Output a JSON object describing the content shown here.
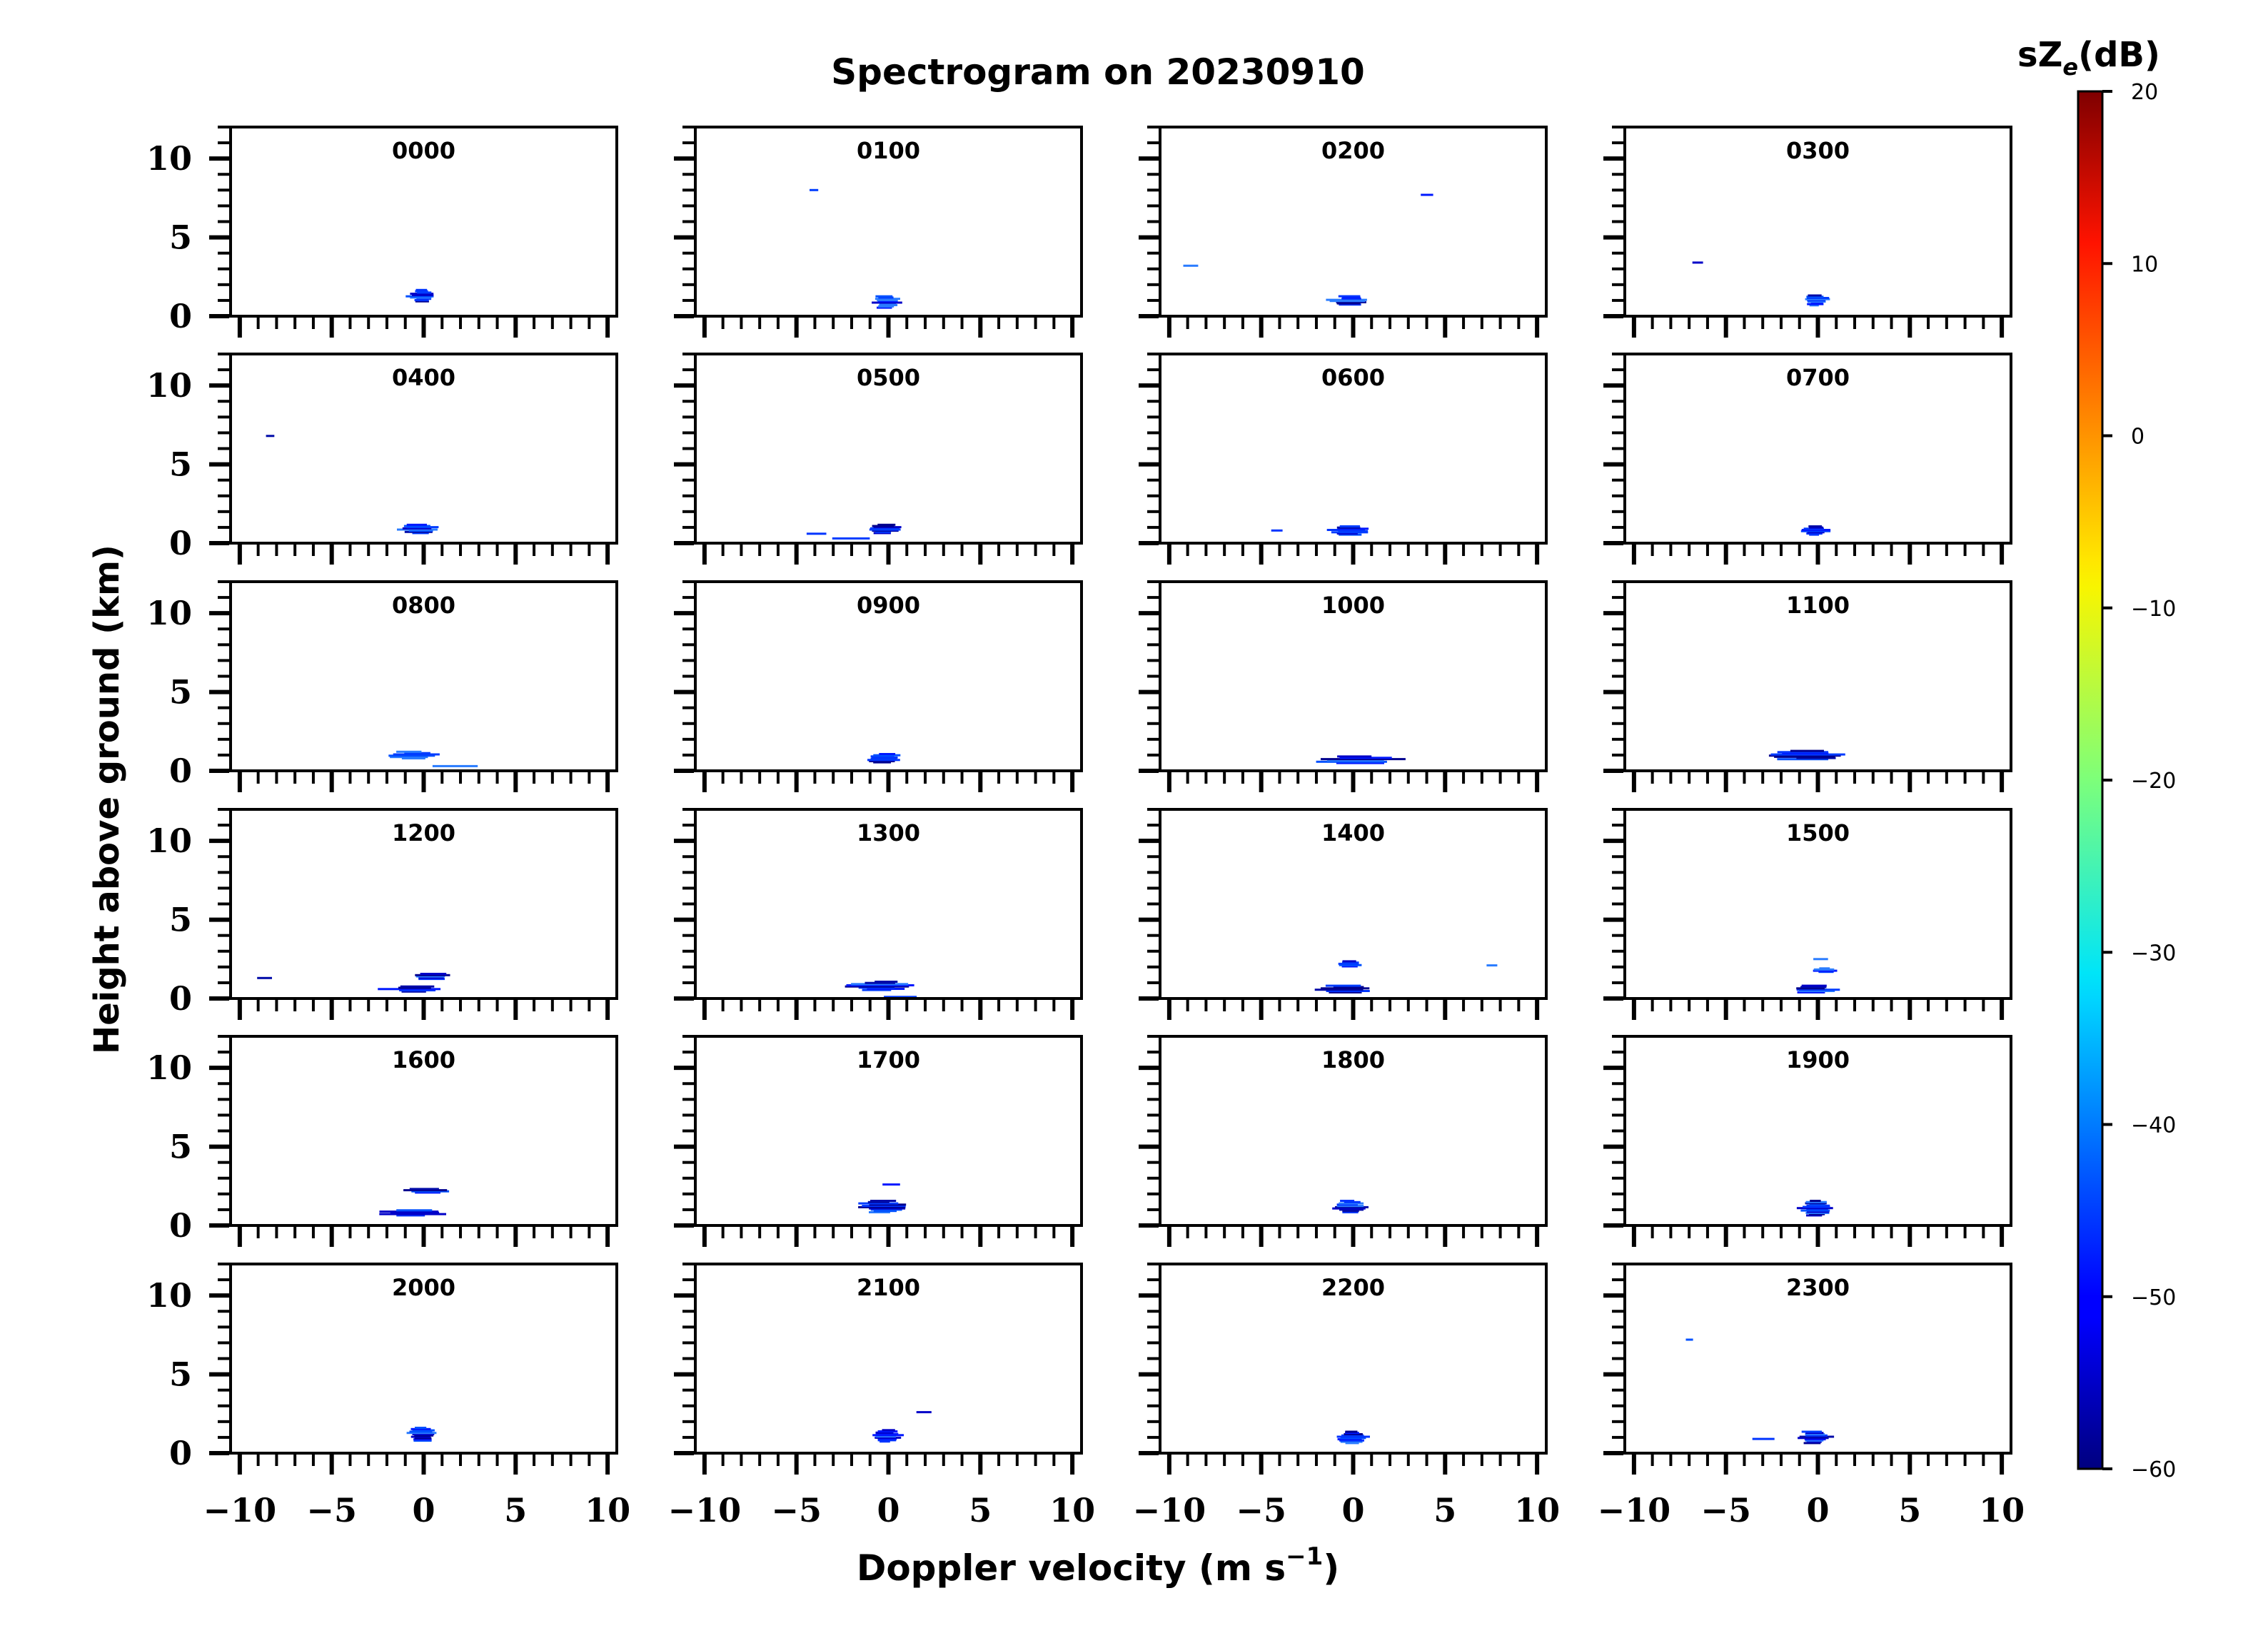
{
  "chart_data": {
    "type": "heatmap",
    "title": "Spectrogram on 20230910",
    "xlabel": "Doppler velocity (m s",
    "xlabel_sup": "−1",
    "xlabel_close": ")",
    "ylabel": "Height above ground (km)",
    "xlim": [
      -10.5,
      10.5
    ],
    "ylim": [
      0,
      12
    ],
    "x_ticks": [
      -10,
      -5,
      0,
      5,
      10
    ],
    "x_tick_labels": [
      "−10",
      "−5",
      "0",
      "5",
      "10"
    ],
    "y_ticks": [
      0,
      5,
      10
    ],
    "y_tick_labels": [
      "0",
      "5",
      "10"
    ],
    "grid": false,
    "colorbar": {
      "label_main": "sZ",
      "label_sub": "e",
      "label_unit": "(dB)",
      "range": [
        -60,
        20
      ],
      "ticks": [
        20,
        10,
        0,
        -10,
        -20,
        -30,
        -40,
        -50,
        -60
      ],
      "tick_labels": [
        "20",
        "10",
        "0",
        "−10",
        "−20",
        "−30",
        "−40",
        "−50",
        "−60"
      ],
      "colormap": "jet"
    },
    "panels": [
      {
        "label": "0000",
        "blobs": [
          [
            -0.1,
            1.3,
            1.9,
            0.8
          ]
        ]
      },
      {
        "label": "0100",
        "blobs": [
          [
            -0.1,
            0.9,
            1.9,
            0.8
          ],
          [
            -4.0,
            8.0,
            0.8,
            0.06
          ]
        ]
      },
      {
        "label": "0200",
        "blobs": [
          [
            -0.2,
            1.0,
            2.4,
            0.6
          ],
          [
            -8.8,
            3.2,
            1.0,
            0.05
          ],
          [
            4.0,
            7.7,
            0.8,
            0.05
          ]
        ]
      },
      {
        "label": "0300",
        "blobs": [
          [
            -0.1,
            1.0,
            1.6,
            0.7
          ],
          [
            -6.5,
            3.4,
            0.8,
            0.05
          ]
        ]
      },
      {
        "label": "0400",
        "blobs": [
          [
            -0.2,
            0.9,
            2.4,
            0.6
          ],
          [
            -8.3,
            6.8,
            0.8,
            0.06
          ]
        ]
      },
      {
        "label": "0500",
        "blobs": [
          [
            -0.2,
            0.9,
            2.2,
            0.6
          ],
          [
            -3.8,
            0.6,
            1.6,
            0.05
          ],
          [
            -2.0,
            0.3,
            2.2,
            0.06
          ]
        ]
      },
      {
        "label": "0600",
        "blobs": [
          [
            -0.2,
            0.8,
            2.6,
            0.6
          ],
          [
            -4.2,
            0.8,
            0.8,
            0.05
          ]
        ]
      },
      {
        "label": "0700",
        "blobs": [
          [
            -0.1,
            0.8,
            1.8,
            0.6
          ]
        ]
      },
      {
        "label": "0800",
        "blobs": [
          [
            -0.6,
            1.0,
            3.5,
            0.5
          ],
          [
            1.6,
            0.3,
            4.3,
            0.05
          ]
        ]
      },
      {
        "label": "0900",
        "blobs": [
          [
            -0.2,
            0.8,
            2.4,
            0.6
          ]
        ]
      },
      {
        "label": "1000",
        "blobs": [
          [
            0.3,
            0.7,
            5.5,
            0.5
          ]
        ]
      },
      {
        "label": "1100",
        "blobs": [
          [
            -0.5,
            1.0,
            5.5,
            0.6
          ]
        ]
      },
      {
        "label": "1200",
        "blobs": [
          [
            -0.6,
            0.6,
            3.8,
            0.4
          ],
          [
            0.5,
            1.4,
            2.6,
            0.4
          ],
          [
            -8.7,
            1.3,
            0.9,
            0.05
          ]
        ]
      },
      {
        "label": "1300",
        "blobs": [
          [
            -0.4,
            0.8,
            4.2,
            0.6
          ],
          [
            0.7,
            0.1,
            3.0,
            0.06
          ]
        ]
      },
      {
        "label": "1400",
        "blobs": [
          [
            -0.5,
            0.6,
            4.0,
            0.5
          ],
          [
            -0.2,
            2.2,
            1.6,
            0.4
          ],
          [
            7.5,
            2.1,
            0.8,
            0.05
          ]
        ]
      },
      {
        "label": "1500",
        "blobs": [
          [
            -0.2,
            0.6,
            3.0,
            0.5
          ],
          [
            0.4,
            1.8,
            1.6,
            0.3
          ],
          [
            0.2,
            2.5,
            1.4,
            0.05
          ]
        ]
      },
      {
        "label": "1600",
        "blobs": [
          [
            -0.8,
            0.8,
            4.8,
            0.4
          ],
          [
            0.2,
            2.2,
            3.0,
            0.3
          ]
        ]
      },
      {
        "label": "1700",
        "blobs": [
          [
            -0.3,
            1.2,
            3.4,
            0.8
          ],
          [
            0.1,
            2.6,
            1.0,
            0.06
          ]
        ]
      },
      {
        "label": "1800",
        "blobs": [
          [
            -0.2,
            1.2,
            2.2,
            0.8
          ]
        ]
      },
      {
        "label": "1900",
        "blobs": [
          [
            -0.1,
            1.1,
            2.0,
            1.0
          ]
        ]
      },
      {
        "label": "2000",
        "blobs": [
          [
            -0.1,
            1.2,
            2.0,
            0.9
          ]
        ]
      },
      {
        "label": "2100",
        "blobs": [
          [
            -0.1,
            1.1,
            1.8,
            0.8
          ],
          [
            2.0,
            2.6,
            1.0,
            0.05
          ]
        ]
      },
      {
        "label": "2200",
        "blobs": [
          [
            -0.1,
            1.0,
            2.0,
            0.8
          ]
        ]
      },
      {
        "label": "2300",
        "blobs": [
          [
            -0.2,
            1.0,
            2.2,
            0.8
          ],
          [
            -3.0,
            0.9,
            1.6,
            0.05
          ],
          [
            -7.0,
            7.2,
            0.6,
            0.06
          ]
        ]
      }
    ]
  }
}
